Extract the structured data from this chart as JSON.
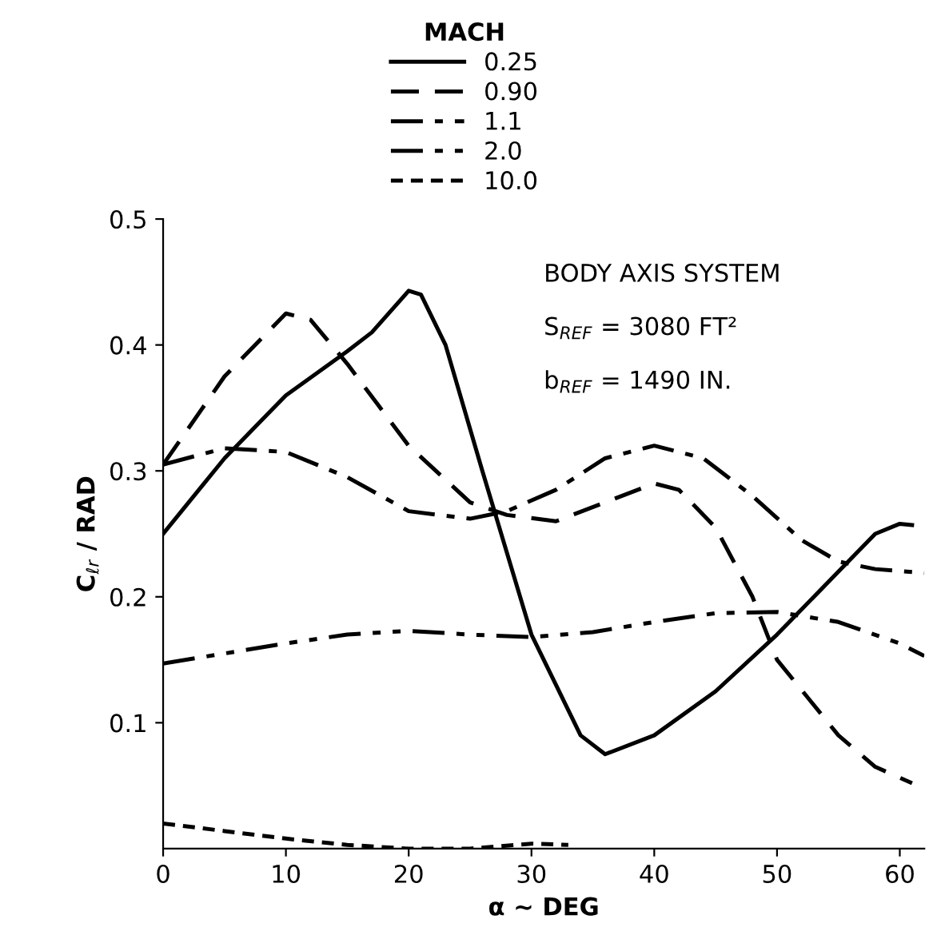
{
  "chart_data": {
    "type": "line",
    "xlabel": "α ~ DEG",
    "ylabel": "C$_{ℓr}$ / RAD",
    "legend_title": "MACH",
    "xlim": [
      0,
      62
    ],
    "xticks": [
      0,
      10,
      20,
      30,
      40,
      50,
      60
    ],
    "ylim": [
      0,
      0.5
    ],
    "yticks": [
      0.1,
      0.2,
      0.3,
      0.4,
      0.5
    ],
    "grid": false,
    "legend": "top",
    "annotations": [
      "BODY AXIS SYSTEM",
      "S$_{REF}$ = 3080 FT²",
      "b$_{REF}$ = 1490 IN."
    ],
    "series": [
      {
        "name": "0.25",
        "color": "#000000",
        "line_style": "solid",
        "x": [
          0,
          5,
          10,
          15,
          17,
          20,
          21,
          23,
          26,
          30,
          34,
          36,
          40,
          45,
          50,
          55,
          58,
          60,
          61
        ],
        "values": [
          0.25,
          0.31,
          0.36,
          0.395,
          0.41,
          0.443,
          0.44,
          0.4,
          0.3,
          0.17,
          0.09,
          0.075,
          0.09,
          0.125,
          0.17,
          0.22,
          0.25,
          0.258,
          0.257
        ]
      },
      {
        "name": "0.90",
        "color": "#000000",
        "line_style": "dashed",
        "x": [
          0,
          5,
          10,
          12,
          15,
          20,
          25,
          28,
          32,
          36,
          40,
          42,
          45,
          48,
          50,
          55,
          58,
          61
        ],
        "values": [
          0.305,
          0.375,
          0.425,
          0.42,
          0.385,
          0.32,
          0.275,
          0.265,
          0.26,
          0.275,
          0.29,
          0.285,
          0.255,
          0.2,
          0.15,
          0.09,
          0.065,
          0.052
        ]
      },
      {
        "name": "1.1",
        "color": "#000000",
        "line_style": "dashdot",
        "x": [
          0,
          5,
          10,
          15,
          20,
          25,
          28,
          32,
          36,
          40,
          44,
          48,
          52,
          55,
          58,
          62
        ],
        "values": [
          0.305,
          0.318,
          0.315,
          0.295,
          0.268,
          0.262,
          0.268,
          0.285,
          0.31,
          0.32,
          0.31,
          0.28,
          0.245,
          0.228,
          0.222,
          0.219
        ]
      },
      {
        "name": "2.0",
        "color": "#000000",
        "line_style": "dashdotdot",
        "x": [
          0,
          5,
          10,
          15,
          20,
          25,
          30,
          35,
          40,
          45,
          50,
          55,
          60,
          62
        ],
        "values": [
          0.147,
          0.155,
          0.163,
          0.17,
          0.173,
          0.17,
          0.168,
          0.172,
          0.18,
          0.187,
          0.188,
          0.18,
          0.163,
          0.153
        ]
      },
      {
        "name": "10.0",
        "color": "#000000",
        "line_style": "dotted",
        "x": [
          0,
          5,
          10,
          15,
          20,
          25,
          30,
          33
        ],
        "values": [
          0.02,
          0.014,
          0.008,
          0.003,
          0.0,
          0.0,
          0.004,
          0.003
        ]
      }
    ]
  }
}
